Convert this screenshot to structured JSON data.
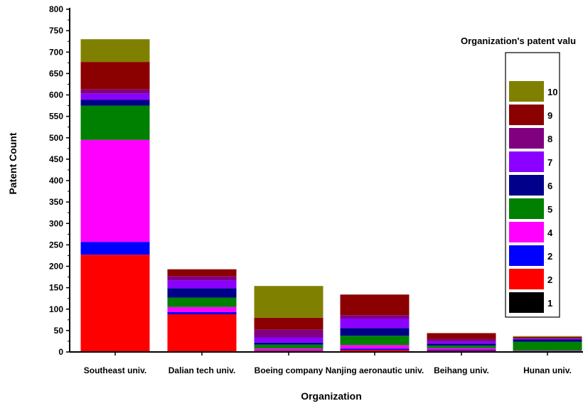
{
  "chart_data": {
    "type": "bar",
    "stacked": true,
    "xlabel": "Organization",
    "ylabel": "Patent Count",
    "ylim": [
      0,
      800
    ],
    "yticks": [
      0,
      50,
      100,
      150,
      200,
      250,
      300,
      350,
      400,
      450,
      500,
      550,
      600,
      650,
      700,
      750,
      800
    ],
    "categories": [
      "Southeast univ.",
      "Dalian tech univ.",
      "Boeing company",
      "Nanjing aeronautic univ.",
      "Beihang univ.",
      "Hunan univ."
    ],
    "legend": {
      "title": "Organization's patent valu",
      "placement": "right",
      "order": "top-to-bottom reversed series"
    },
    "series": [
      {
        "name": "1",
        "color": "#000000",
        "values": [
          0,
          0,
          0,
          0,
          0,
          0
        ]
      },
      {
        "name": "2",
        "color": "#ff0000",
        "values": [
          227,
          88,
          3,
          5,
          3,
          1
        ]
      },
      {
        "name": "2",
        "color": "#0000ff",
        "values": [
          30,
          5,
          1,
          3,
          2,
          1
        ]
      },
      {
        "name": "4",
        "color": "#ff00ff",
        "values": [
          238,
          12,
          4,
          8,
          4,
          1
        ]
      },
      {
        "name": "5",
        "color": "#008000",
        "values": [
          80,
          22,
          9,
          22,
          6,
          21
        ]
      },
      {
        "name": "6",
        "color": "#00008b",
        "values": [
          14,
          22,
          5,
          18,
          4,
          5
        ]
      },
      {
        "name": "7",
        "color": "#8b00ff",
        "values": [
          14,
          18,
          12,
          22,
          6,
          2
        ]
      },
      {
        "name": "8",
        "color": "#800080",
        "values": [
          10,
          10,
          18,
          8,
          5,
          1
        ]
      },
      {
        "name": "9",
        "color": "#8b0000",
        "values": [
          64,
          16,
          28,
          48,
          14,
          3
        ]
      },
      {
        "name": "10",
        "color": "#808000",
        "values": [
          53,
          0,
          74,
          0,
          0,
          2
        ]
      }
    ]
  }
}
